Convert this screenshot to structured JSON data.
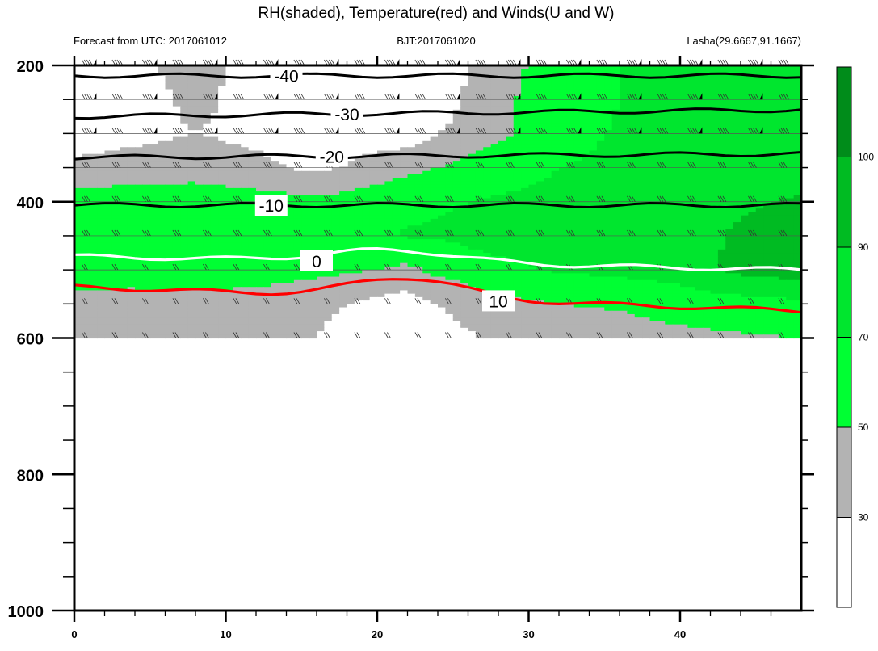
{
  "chart_data": {
    "type": "heatmap",
    "title": "RH(shaded), Temperature(red) and Winds(U and W)",
    "subtitles": {
      "left": "Forecast from UTC: 2017061012",
      "center": "BJT:2017061020",
      "right": "Lasha(29.6667,91.1667)"
    },
    "xlim": [
      0,
      48
    ],
    "x_ticks": [
      0,
      10,
      20,
      30,
      40
    ],
    "ylim": [
      200,
      1000
    ],
    "y_reversed": true,
    "y_ticks": [
      200,
      400,
      600,
      800,
      1000
    ],
    "levels": [
      200,
      250,
      300,
      350,
      400,
      450,
      500,
      550,
      600
    ],
    "rh_levels": [
      30,
      50,
      70,
      90,
      100
    ],
    "rh_colors": {
      "below_30": "#ffffff",
      "30_50": "#b3b3b3",
      "50_70": "#00ff33",
      "70_90": "#00e62e",
      "90_100": "#00bb22",
      "above_100": "#008c1a"
    },
    "rh_grid": {
      "x": [
        0,
        4,
        8,
        12,
        16,
        20,
        22,
        24,
        28,
        32,
        36,
        40,
        44,
        48
      ],
      "p": [
        200,
        250,
        300,
        350,
        400,
        450,
        500,
        550,
        600
      ],
      "values": [
        [
          20,
          25,
          40,
          20,
          18,
          18,
          18,
          20,
          40,
          62,
          70,
          72,
          72,
          75
        ],
        [
          18,
          20,
          35,
          22,
          18,
          18,
          18,
          20,
          45,
          62,
          70,
          72,
          72,
          75
        ],
        [
          20,
          25,
          30,
          25,
          20,
          18,
          20,
          30,
          45,
          62,
          72,
          72,
          75,
          78
        ],
        [
          35,
          38,
          42,
          35,
          25,
          40,
          45,
          50,
          62,
          70,
          75,
          78,
          80,
          82
        ],
        [
          58,
          62,
          60,
          58,
          55,
          60,
          65,
          68,
          72,
          75,
          78,
          80,
          88,
          92
        ],
        [
          62,
          65,
          66,
          63,
          60,
          66,
          72,
          72,
          78,
          80,
          82,
          85,
          92,
          96
        ],
        [
          62,
          62,
          64,
          60,
          55,
          50,
          45,
          55,
          65,
          72,
          75,
          80,
          95,
          100
        ],
        [
          42,
          40,
          42,
          40,
          35,
          25,
          20,
          30,
          45,
          50,
          52,
          58,
          62,
          66
        ],
        [
          30,
          32,
          35,
          35,
          30,
          15,
          10,
          20,
          35,
          40,
          42,
          45,
          48,
          50
        ]
      ]
    },
    "temperature_contours": [
      {
        "label": "-40",
        "p_start": 215,
        "p_end": 215,
        "label_x": 14,
        "color": "#000000"
      },
      {
        "label": "-30",
        "p_start": 275,
        "p_end": 265,
        "label_x": 18,
        "color": "#000000"
      },
      {
        "label": "-20",
        "p_start": 335,
        "p_end": 330,
        "label_x": 17,
        "color": "#000000"
      },
      {
        "label": "-10",
        "p_start": 405,
        "p_end": 405,
        "label_x": 13,
        "color": "#000000"
      },
      {
        "label": "0",
        "p_start": 480,
        "p_end": 500,
        "label_x": 16,
        "color": "#ffffff"
      },
      {
        "label": "10",
        "p_start": 525,
        "p_end": 560,
        "label_x": 28,
        "color": "#ff0000"
      }
    ],
    "colorbar": {
      "labels": [
        "100",
        "90",
        "70",
        "50",
        "30"
      ]
    }
  }
}
